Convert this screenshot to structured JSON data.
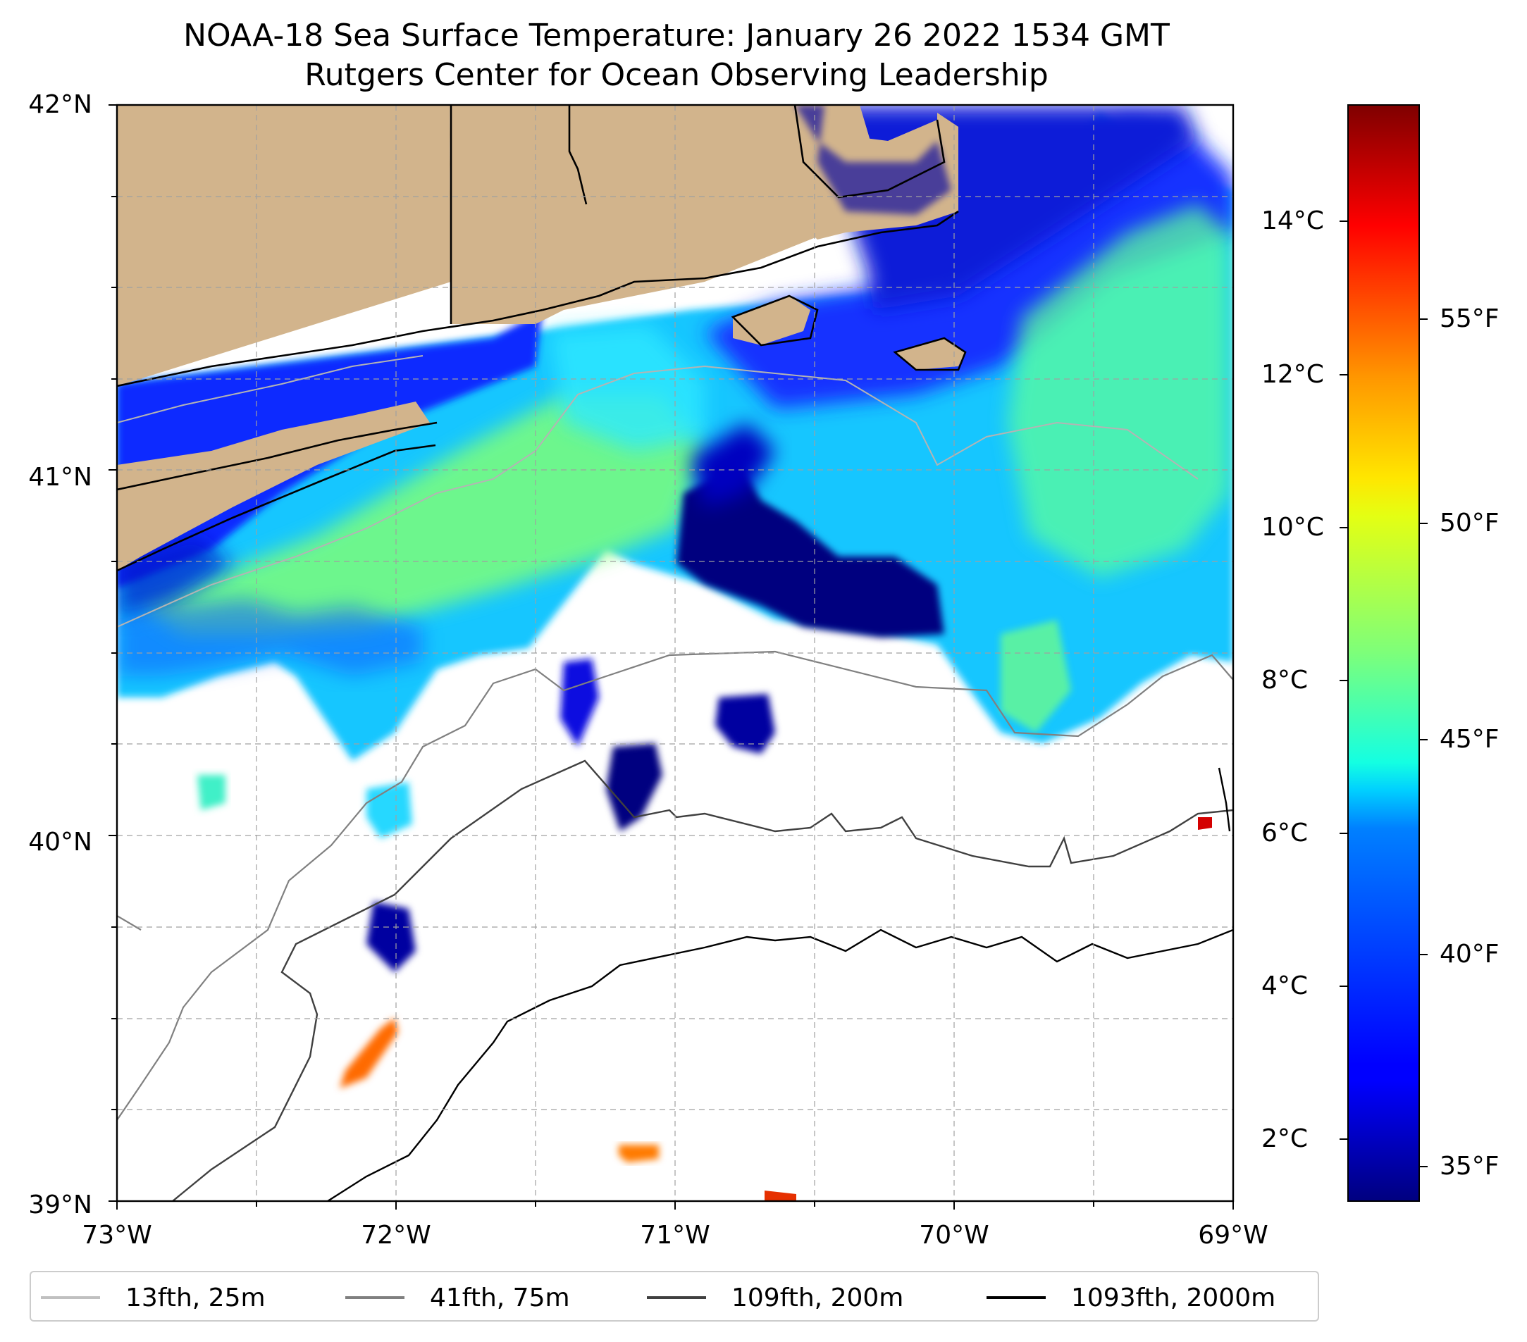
{
  "title": {
    "line1": "NOAA-18 Sea Surface Temperature: January 26 2022 1534 GMT",
    "line2": "Rutgers Center for Ocean Observing Leadership"
  },
  "map": {
    "lon_range": [
      -73,
      -69
    ],
    "lat_range": [
      39,
      42
    ],
    "lat_ticks": [
      "42°N",
      "41°N",
      "40°N",
      "39°N"
    ],
    "lon_ticks": [
      "73°W",
      "72°W",
      "71°W",
      "70°W",
      "69°W"
    ],
    "gridlines": true,
    "colors": {
      "land": "#d2b48c",
      "no_data": "#ffffff",
      "contour_25m": "#b4b4b4",
      "contour_75m": "#808080",
      "contour_200m": "#404040",
      "contour_2000m": "#000000"
    }
  },
  "colorbar": {
    "colormap": "jet",
    "celsius_ticks": [
      "14°C",
      "12°C",
      "10°C",
      "8°C",
      "6°C",
      "4°C",
      "2°C"
    ],
    "fahrenheit_ticks": [
      "55°F",
      "50°F",
      "45°F",
      "40°F",
      "35°F"
    ]
  },
  "legend": {
    "items": [
      {
        "label": "13fth, 25m",
        "color": "#c0c0c0"
      },
      {
        "label": "41fth, 75m",
        "color": "#808080"
      },
      {
        "label": "109fth, 200m",
        "color": "#404040"
      },
      {
        "label": "1093fth, 2000m",
        "color": "#000000"
      }
    ]
  }
}
